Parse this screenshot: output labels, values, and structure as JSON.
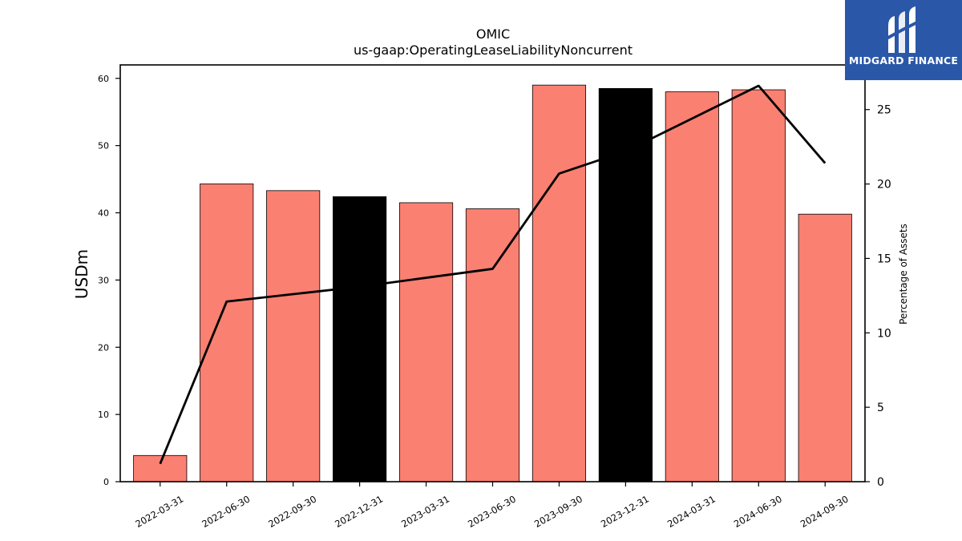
{
  "logo": {
    "text": "MIDGARD FINANCE",
    "color": "#2b57a8"
  },
  "chart_data": {
    "type": "bar",
    "title": "OMIC",
    "subtitle": "us-gaap:OperatingLeaseLiabilityNoncurrent",
    "ylabel": "USDm",
    "y2label": "Percentage of Assets",
    "ylim": [
      0,
      62
    ],
    "y2lim": [
      0,
      28
    ],
    "yticks": [
      0,
      10,
      20,
      30,
      40,
      50,
      60
    ],
    "y2ticks": [
      0,
      5,
      10,
      15,
      20,
      25
    ],
    "categories": [
      "2022-03-31",
      "2022-06-30",
      "2022-09-30",
      "2022-12-31",
      "2023-03-31",
      "2023-06-30",
      "2023-09-30",
      "2023-12-31",
      "2024-03-31",
      "2024-06-30",
      "2024-09-30"
    ],
    "series": [
      {
        "values": [
          3.9,
          44.3,
          43.3,
          42.4,
          41.5,
          40.6,
          59.0,
          58.5,
          58.0,
          58.3,
          39.8
        ]
      },
      {
        "values": [
          1.2,
          12.1,
          12.6,
          13.1,
          13.7,
          14.3,
          20.7,
          22.2,
          24.4,
          26.6,
          21.4
        ]
      }
    ],
    "bar_colors": [
      "#fa8072",
      "#fa8072",
      "#fa8072",
      "#000000",
      "#fa8072",
      "#fa8072",
      "#fa8072",
      "#000000",
      "#fa8072",
      "#fa8072",
      "#fa8072"
    ],
    "line_color": "#000000",
    "grid": false
  }
}
